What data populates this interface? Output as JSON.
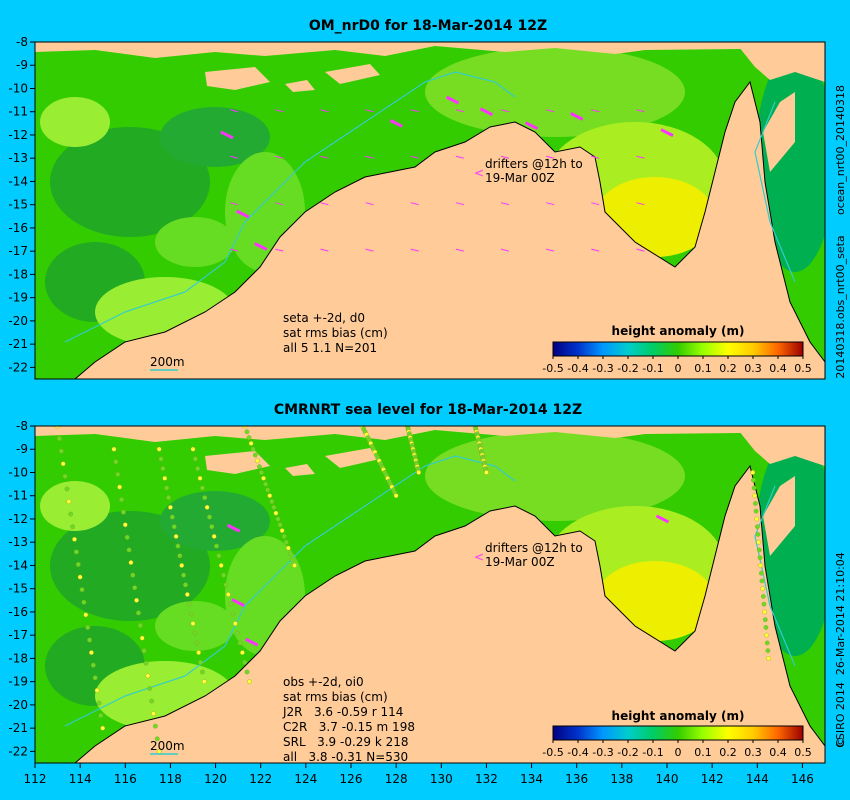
{
  "side_labels": {
    "top_right": "ocean_nrt00_20140318",
    "mid_right": "20140318.obs_nrt00_seta",
    "bottom_right": "CSIRO 2014  26-Mar-2014 21:10:04",
    "copyright_symbol": "©"
  },
  "colors": {
    "background": "#00ccff",
    "land": "#ffcc99",
    "drifter": "#ff33ff",
    "isobath": "#33cccc"
  },
  "chart_data": [
    {
      "type": "heatmap",
      "title": "OM_nrD0 for 18-Mar-2014 12Z",
      "xlim": [
        112,
        147
      ],
      "ylim": [
        -22.5,
        -8
      ],
      "y_ticks": [
        -8,
        -9,
        -10,
        -11,
        -12,
        -13,
        -14,
        -15,
        -16,
        -17,
        -18,
        -19,
        -20,
        -21,
        -22
      ],
      "drifter_note": [
        "drifters @12h to",
        "19-Mar 00Z"
      ],
      "stats_lines": [
        "seta +-2d, d0",
        "sat rms bias (cm)",
        "all 5 1.1 N=201"
      ],
      "isobath_label": "200m",
      "colorbar": {
        "title": "height anomaly (m)",
        "min": -0.5,
        "max": 0.5,
        "ticks": [
          "-0.5",
          "-0.4",
          "-0.3",
          "-0.2",
          "-0.1",
          "0",
          "0.1",
          "0.2",
          "0.3",
          "0.4",
          "0.5"
        ]
      }
    },
    {
      "type": "heatmap",
      "title": "CMRNRT sea level  for 18-Mar-2014 12Z",
      "xlim": [
        112,
        147
      ],
      "ylim": [
        -22.5,
        -8
      ],
      "x_ticks": [
        112,
        114,
        116,
        118,
        120,
        122,
        124,
        126,
        128,
        130,
        132,
        134,
        136,
        138,
        140,
        142,
        144,
        146
      ],
      "y_ticks": [
        -8,
        -9,
        -10,
        -11,
        -12,
        -13,
        -14,
        -15,
        -16,
        -17,
        -18,
        -19,
        -20,
        -21,
        -22
      ],
      "drifter_note": [
        "drifters @12h to",
        "19-Mar 00Z"
      ],
      "stats_lines": [
        "obs +-2d, oi0",
        "sat rms bias (cm)",
        "J2R   3.6 -0.59 r 114",
        "C2R   3.7 -0.15 m 198",
        "SRL   3.9 -0.29 k 218",
        "all   3.8 -0.31 N=530"
      ],
      "isobath_label": "200m",
      "colorbar": {
        "title": "height anomaly (m)",
        "min": -0.5,
        "max": 0.5,
        "ticks": [
          "-0.5",
          "-0.4",
          "-0.3",
          "-0.2",
          "-0.1",
          "0",
          "0.1",
          "0.2",
          "0.3",
          "0.4",
          "0.5"
        ]
      }
    }
  ]
}
